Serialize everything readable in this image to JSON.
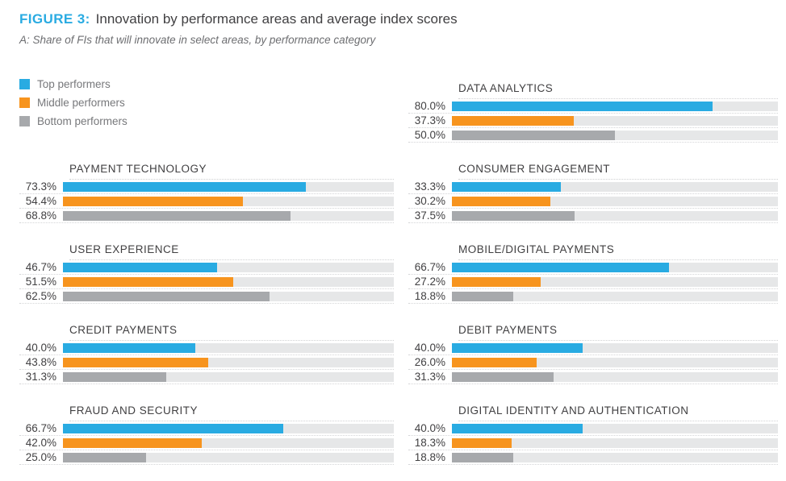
{
  "header": {
    "figure_label": "FIGURE 3:",
    "title": "Innovation by performance areas and average index scores",
    "subtitle": "A: Share of FIs that will innovate in select areas, by performance category"
  },
  "colors": {
    "accent_blue": "#29abe2",
    "orange": "#f7941e",
    "gray": "#a7a9ac",
    "track": "#e6e7e8",
    "title_text": "#414042",
    "legend_text": "#77787b"
  },
  "legend": {
    "items": [
      {
        "label": "Top performers",
        "color": "#29abe2"
      },
      {
        "label": "Middle performers",
        "color": "#f7941e"
      },
      {
        "label": "Bottom performers",
        "color": "#a7a9ac"
      }
    ]
  },
  "chart_data": {
    "type": "bar",
    "orientation": "horizontal",
    "value_unit": "%",
    "xlim": [
      0,
      100
    ],
    "grid": false,
    "legend_position": "top-left",
    "series": [
      "Top performers",
      "Middle performers",
      "Bottom performers"
    ],
    "series_colors": [
      "#29abe2",
      "#f7941e",
      "#a7a9ac"
    ],
    "track_color": "#e6e7e8",
    "columns": {
      "left": [
        {
          "category": "PAYMENT TECHNOLOGY",
          "values": [
            73.3,
            54.4,
            68.8
          ]
        },
        {
          "category": "USER EXPERIENCE",
          "values": [
            46.7,
            51.5,
            62.5
          ]
        },
        {
          "category": "CREDIT PAYMENTS",
          "values": [
            40.0,
            43.8,
            31.3
          ]
        },
        {
          "category": "FRAUD AND SECURITY",
          "values": [
            66.7,
            42.0,
            25.0
          ]
        }
      ],
      "right": [
        {
          "category": "DATA ANALYTICS",
          "values": [
            80.0,
            37.3,
            50.0
          ]
        },
        {
          "category": "CONSUMER ENGAGEMENT",
          "values": [
            33.3,
            30.2,
            37.5
          ]
        },
        {
          "category": "MOBILE/DIGITAL PAYMENTS",
          "values": [
            66.7,
            27.2,
            18.8
          ]
        },
        {
          "category": "DEBIT PAYMENTS",
          "values": [
            40.0,
            26.0,
            31.3
          ]
        },
        {
          "category": "DIGITAL IDENTITY AND AUTHENTICATION",
          "values": [
            40.0,
            18.3,
            18.8
          ]
        }
      ]
    }
  }
}
